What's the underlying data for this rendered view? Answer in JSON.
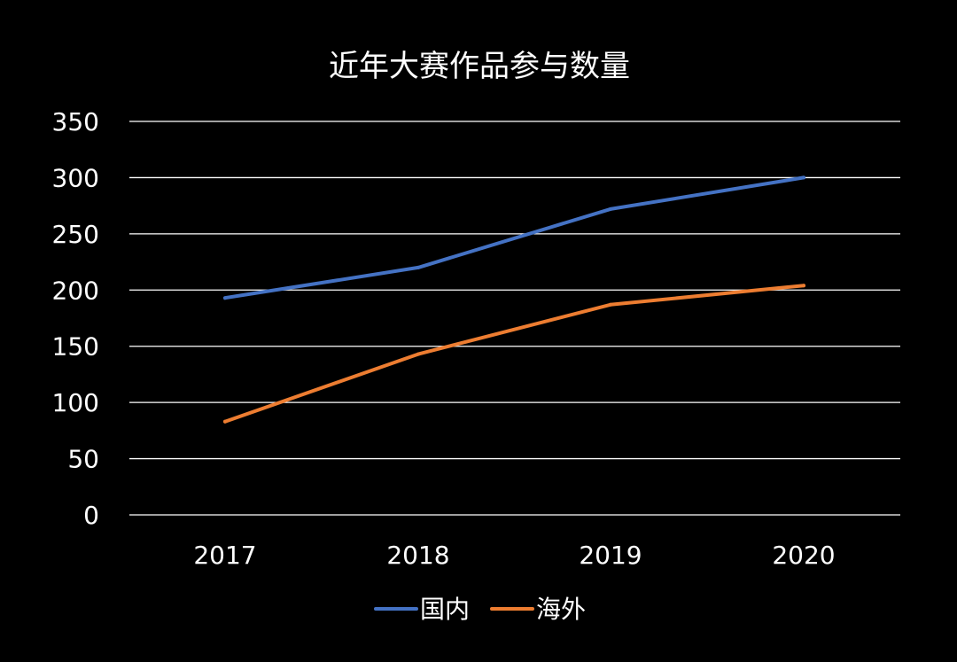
{
  "chart_data": {
    "type": "line",
    "title": "近年大赛作品参与数量",
    "xlabel": "",
    "ylabel": "",
    "categories": [
      "2017",
      "2018",
      "2019",
      "2020"
    ],
    "series": [
      {
        "name": "国内",
        "color": "#4472C4",
        "values": [
          193,
          220,
          272,
          300
        ]
      },
      {
        "name": "海外",
        "color": "#ED7D31",
        "values": [
          83,
          143,
          187,
          204
        ]
      }
    ],
    "ylim": [
      0,
      350
    ],
    "yticks": [
      "0",
      "50",
      "100",
      "150",
      "200",
      "250",
      "300",
      "350"
    ],
    "grid": true,
    "legend": "bottom",
    "colors": {
      "background": "#000000",
      "text": "#ffffff",
      "grid": "#ffffff"
    }
  }
}
